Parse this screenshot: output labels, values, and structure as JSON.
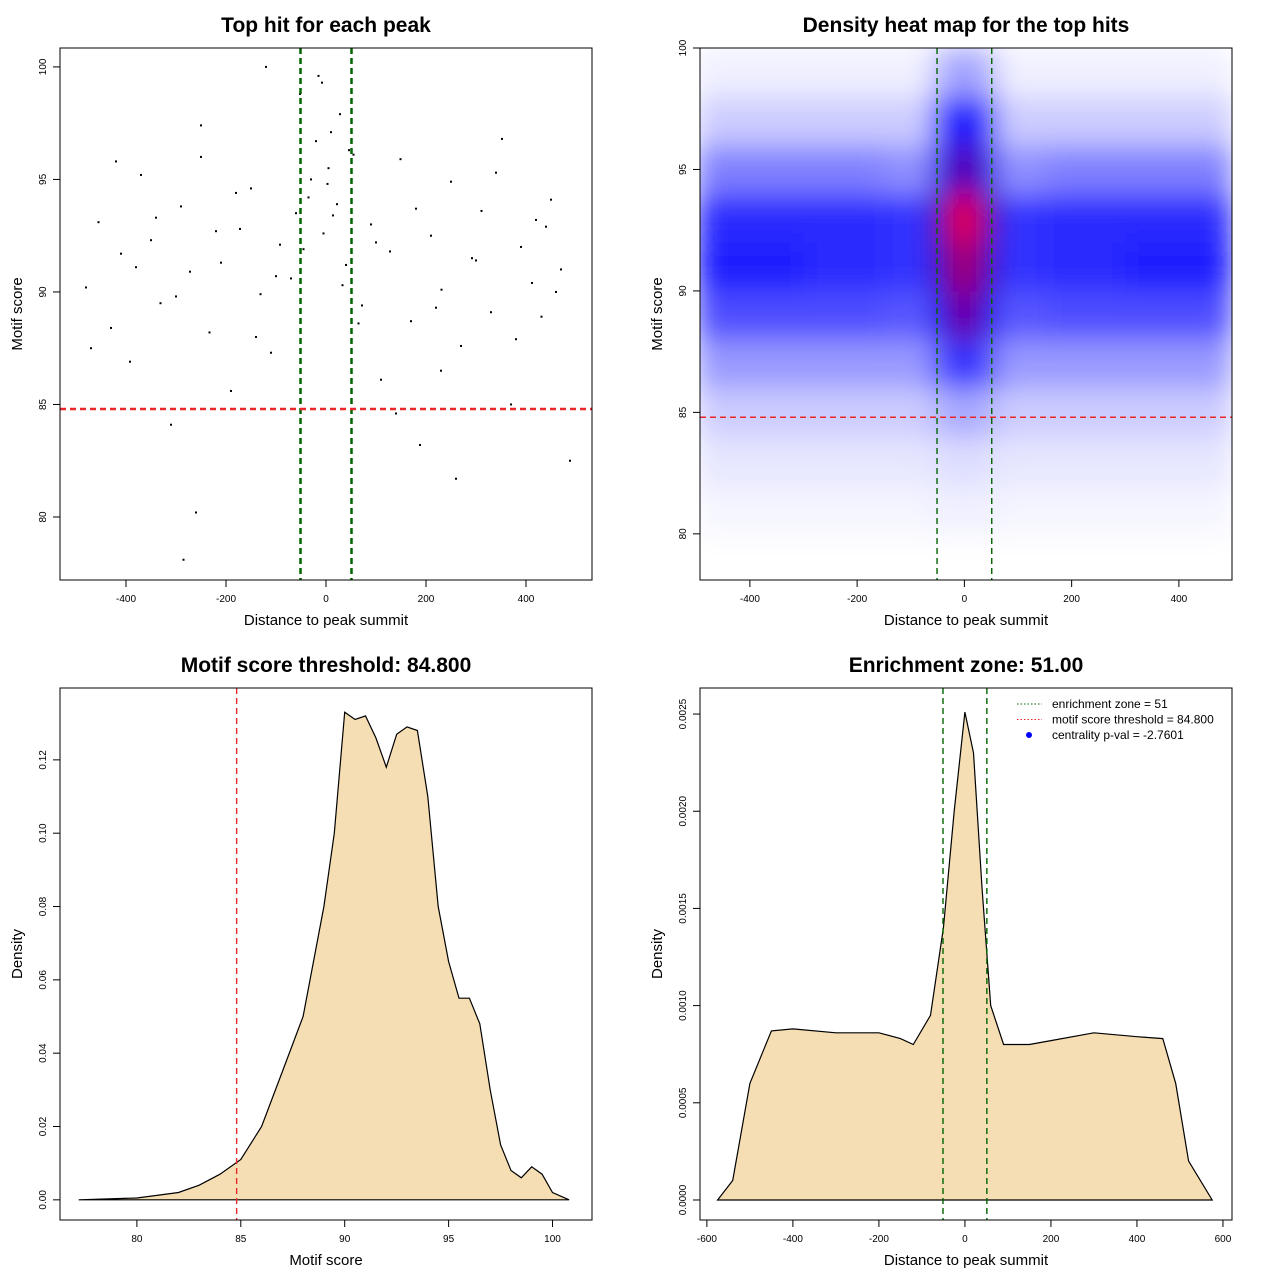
{
  "chart_data": [
    {
      "type": "scatter",
      "title": "Top hit for each peak",
      "xlabel": "Distance to peak summit",
      "ylabel": "Motif score",
      "xlim": [
        -532,
        532
      ],
      "ylim": [
        77.2,
        100.84
      ],
      "xticks": [
        -400,
        -200,
        0,
        200,
        400
      ],
      "yticks": [
        80,
        85,
        90,
        95,
        100
      ],
      "color": "#000000",
      "line_width": 2.5,
      "x": [
        -480,
        -455,
        -430,
        -410,
        -392,
        -370,
        -350,
        -331,
        -310,
        -290,
        -272,
        -250,
        -233,
        -210,
        -190,
        -172,
        -150,
        -131,
        -110,
        -92,
        -70,
        -52,
        -35,
        -20,
        -8,
        5,
        14,
        28,
        40,
        55,
        72,
        90,
        110,
        128,
        149,
        170,
        188,
        210,
        231,
        250,
        270,
        292,
        311,
        330,
        352,
        370,
        390,
        412,
        431,
        450,
        470,
        488,
        -470,
        -420,
        -380,
        -340,
        -300,
        -260,
        -220,
        -180,
        -140,
        -100,
        -60,
        -45,
        -30,
        -15,
        -5,
        3,
        10,
        22,
        33,
        46,
        65,
        100,
        140,
        180,
        220,
        260,
        300,
        340,
        380,
        420,
        460,
        -285,
        -250,
        230,
        440,
        -120
      ],
      "values": [
        90.2,
        93.1,
        88.4,
        91.7,
        86.9,
        95.2,
        92.3,
        89.5,
        84.1,
        93.8,
        90.9,
        97.4,
        88.2,
        91.3,
        85.6,
        92.8,
        94.6,
        89.9,
        87.3,
        92.1,
        90.6,
        98.8,
        94.2,
        96.7,
        99.3,
        95.5,
        93.4,
        97.9,
        91.2,
        96.1,
        89.4,
        93.0,
        86.1,
        91.8,
        95.9,
        88.7,
        83.2,
        92.5,
        90.1,
        94.9,
        87.6,
        91.5,
        93.6,
        89.1,
        96.8,
        85.0,
        92.0,
        90.4,
        88.9,
        94.1,
        91.0,
        82.5,
        87.5,
        95.8,
        91.1,
        93.3,
        89.8,
        80.2,
        92.7,
        94.4,
        88.0,
        90.7,
        93.5,
        91.9,
        95.0,
        99.6,
        92.6,
        94.8,
        97.1,
        93.9,
        90.3,
        96.3,
        88.6,
        92.2,
        84.6,
        93.7,
        89.3,
        81.7,
        91.4,
        95.3,
        87.9,
        93.2,
        90.0,
        78.1,
        96.0,
        86.5,
        92.9,
        100.0
      ],
      "vlines": [
        {
          "value": -51,
          "color": "#006400"
        },
        {
          "value": 51,
          "color": "#006400"
        }
      ],
      "hlines": [
        {
          "value": 84.8,
          "color": "#e8282b"
        }
      ]
    },
    {
      "type": "heatmap",
      "title": "Density heat map for the top hits",
      "xlabel": "Distance to peak summit",
      "ylabel": "Motif score",
      "xlim": [
        -493,
        499
      ],
      "ylim": [
        78.1,
        100
      ],
      "xticks": [
        -400,
        -200,
        0,
        200,
        400
      ],
      "yticks": [
        80,
        85,
        90,
        95,
        100
      ],
      "colors": [
        "#ffffff",
        "#0000ff",
        "#ff0000"
      ],
      "line_width": 1.4,
      "x_edges": [
        -500,
        -300,
        -150,
        -60,
        -20,
        20,
        60,
        150,
        300,
        500
      ],
      "y_edges": [
        78,
        80,
        82,
        84,
        86,
        88,
        90,
        92,
        94,
        96,
        98,
        100
      ],
      "z": [
        [
          0,
          0,
          0,
          0,
          0,
          0,
          0,
          0,
          0
        ],
        [
          0.02,
          0.02,
          0.02,
          0.03,
          0.03,
          0.03,
          0.02,
          0.02,
          0.02
        ],
        [
          0.05,
          0.05,
          0.05,
          0.06,
          0.07,
          0.06,
          0.05,
          0.05,
          0.05
        ],
        [
          0.1,
          0.1,
          0.1,
          0.15,
          0.18,
          0.15,
          0.1,
          0.1,
          0.1
        ],
        [
          0.2,
          0.2,
          0.2,
          0.35,
          0.45,
          0.35,
          0.2,
          0.2,
          0.2
        ],
        [
          0.35,
          0.35,
          0.33,
          0.55,
          0.75,
          0.55,
          0.33,
          0.35,
          0.35
        ],
        [
          0.45,
          0.42,
          0.4,
          0.65,
          0.85,
          0.65,
          0.4,
          0.42,
          0.45
        ],
        [
          0.42,
          0.42,
          0.4,
          0.7,
          1.0,
          0.7,
          0.4,
          0.42,
          0.42
        ],
        [
          0.25,
          0.25,
          0.22,
          0.55,
          0.7,
          0.55,
          0.22,
          0.25,
          0.25
        ],
        [
          0.1,
          0.1,
          0.1,
          0.4,
          0.5,
          0.4,
          0.1,
          0.1,
          0.1
        ],
        [
          0.03,
          0.03,
          0.03,
          0.15,
          0.2,
          0.15,
          0.03,
          0.03,
          0.03
        ]
      ],
      "vlines": [
        {
          "value": -51,
          "color": "#006400"
        },
        {
          "value": 51,
          "color": "#006400"
        }
      ],
      "hlines": [
        {
          "value": 84.8,
          "color": "#e8282b"
        }
      ]
    },
    {
      "type": "area",
      "title": "Motif score threshold: 84.800",
      "xlabel": "Motif score",
      "ylabel": "Density",
      "xlim": [
        76.3,
        101.9
      ],
      "ylim": [
        -0.0055,
        0.1396
      ],
      "xticks": [
        80,
        85,
        90,
        95,
        100
      ],
      "yticks": [
        {
          "value": 0,
          "label": "0.00"
        },
        {
          "value": 0.02,
          "label": "0.02"
        },
        {
          "value": 0.04,
          "label": "0.04"
        },
        {
          "value": 0.06,
          "label": "0.06"
        },
        {
          "value": 0.08,
          "label": "0.08"
        },
        {
          "value": 0.1,
          "label": "0.10"
        },
        {
          "value": 0.12,
          "label": "0.12"
        }
      ],
      "color": "#f5deb3",
      "line_width": 1.4,
      "x": [
        77.2,
        80,
        82,
        83,
        84,
        85,
        86,
        87,
        88,
        89,
        89.5,
        90,
        90.5,
        91,
        91.5,
        92,
        92.5,
        93,
        93.5,
        94,
        94.5,
        95,
        95.5,
        96,
        96.5,
        97,
        97.5,
        98,
        98.5,
        99,
        99.5,
        100,
        100.8
      ],
      "values": [
        0,
        0.0005,
        0.002,
        0.004,
        0.007,
        0.011,
        0.02,
        0.035,
        0.05,
        0.08,
        0.1,
        0.133,
        0.131,
        0.132,
        0.126,
        0.118,
        0.127,
        0.129,
        0.128,
        0.11,
        0.08,
        0.065,
        0.055,
        0.055,
        0.048,
        0.03,
        0.015,
        0.008,
        0.006,
        0.009,
        0.007,
        0.002,
        0
      ],
      "vlines": [
        {
          "value": 84.8,
          "color": "#e8282b"
        }
      ]
    },
    {
      "type": "area",
      "title": "Enrichment zone: 51.00",
      "xlabel": "Distance to peak summit",
      "ylabel": "Density",
      "xlim": [
        -616,
        621
      ],
      "ylim": [
        -0.000103,
        0.002634
      ],
      "xticks": [
        -600,
        -400,
        -200,
        0,
        200,
        400,
        600
      ],
      "yticks": [
        {
          "value": 0,
          "label": "0.0000"
        },
        {
          "value": 0.0005,
          "label": "0.0005"
        },
        {
          "value": 0.001,
          "label": "0.0010"
        },
        {
          "value": 0.0015,
          "label": "0.0015"
        },
        {
          "value": 0.002,
          "label": "0.0020"
        },
        {
          "value": 0.0025,
          "label": "0.0025"
        }
      ],
      "color": "#f5deb3",
      "line_width": 1.4,
      "x": [
        -575,
        -540,
        -500,
        -450,
        -400,
        -300,
        -200,
        -150,
        -120,
        -80,
        -50,
        -25,
        0,
        20,
        40,
        60,
        90,
        150,
        200,
        300,
        400,
        460,
        490,
        520,
        575
      ],
      "values": [
        0,
        0.0001,
        0.0006,
        0.00087,
        0.00088,
        0.00086,
        0.00086,
        0.00083,
        0.0008,
        0.00095,
        0.0014,
        0.002,
        0.00251,
        0.0023,
        0.0016,
        0.001,
        0.0008,
        0.0008,
        0.00082,
        0.00086,
        0.00084,
        0.00083,
        0.0006,
        0.0002,
        0
      ],
      "vlines": [
        {
          "value": -51,
          "color": "#006400"
        },
        {
          "value": 51,
          "color": "#006400"
        }
      ],
      "legend": {
        "position": "topright",
        "items": [
          {
            "label": "enrichment zone = 51",
            "color": "#006400",
            "style": "dotted"
          },
          {
            "label": "motif score threshold = 84.800",
            "color": "#e8282b",
            "style": "dotted"
          },
          {
            "label": "centrality p-val = -2.7601",
            "color": "#0000ff",
            "style": "point"
          }
        ]
      }
    }
  ]
}
